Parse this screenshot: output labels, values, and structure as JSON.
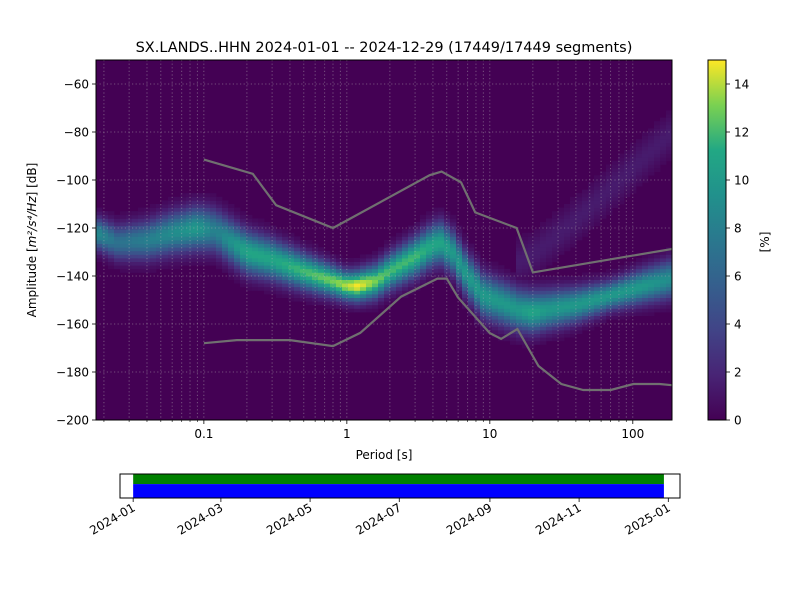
{
  "chart_data": [
    {
      "type": "heatmap",
      "title": "SX.LANDS..HHN   2024-01-01 -- 2024-12-29  (17449/17449 segments)",
      "xlabel": "Period [s]",
      "ylabel_main": "Amplitude [",
      "ylabel_units": "m²/s⁴/Hz",
      "ylabel_tail": "] [dB]",
      "x_scale": "log",
      "xlim": [
        0.0176,
        188
      ],
      "ylim": [
        -200,
        -50
      ],
      "grid": true,
      "x_ticks": [
        {
          "value": 0.1,
          "label": "0.1"
        },
        {
          "value": 1,
          "label": "1"
        },
        {
          "value": 10,
          "label": "10"
        },
        {
          "value": 100,
          "label": "100"
        }
      ],
      "y_ticks": [
        {
          "value": -60,
          "label": "−60"
        },
        {
          "value": -80,
          "label": "−80"
        },
        {
          "value": -100,
          "label": "−100"
        },
        {
          "value": -120,
          "label": "−120"
        },
        {
          "value": -140,
          "label": "−140"
        },
        {
          "value": -160,
          "label": "−160"
        },
        {
          "value": -180,
          "label": "−180"
        },
        {
          "value": -200,
          "label": "−200"
        }
      ],
      "colorbar": {
        "label": "[%]",
        "colormap": "viridis",
        "range": [
          0,
          15
        ],
        "ticks": [
          {
            "value": 0,
            "label": "0"
          },
          {
            "value": 2,
            "label": "2"
          },
          {
            "value": 4,
            "label": "4"
          },
          {
            "value": 6,
            "label": "6"
          },
          {
            "value": 8,
            "label": "8"
          },
          {
            "value": 10,
            "label": "10"
          },
          {
            "value": 12,
            "label": "12"
          },
          {
            "value": 14,
            "label": "14"
          }
        ]
      },
      "density_ridge": {
        "period": [
          0.0176,
          0.025,
          0.04,
          0.06,
          0.09,
          0.12,
          0.2,
          0.3,
          0.5,
          0.8,
          1.0,
          1.2,
          1.6,
          2.0,
          3.0,
          4.0,
          4.5,
          5.5,
          7.0,
          9.0,
          12,
          16,
          20,
          25,
          40,
          70,
          120,
          188
        ],
        "amplitude_db": [
          -122,
          -126,
          -125,
          -122,
          -120,
          -121,
          -130,
          -133,
          -138,
          -142,
          -144,
          -144,
          -142,
          -138,
          -132,
          -127,
          -126,
          -130,
          -140,
          -148,
          -151,
          -154,
          -155,
          -154,
          -152,
          -148,
          -144,
          -141
        ],
        "peak_percent": [
          9,
          7,
          8,
          9,
          10,
          8,
          11,
          11,
          12,
          13,
          14,
          15,
          13,
          12,
          12,
          11,
          11,
          10,
          10,
          10,
          10,
          10,
          11,
          10,
          10,
          10,
          10,
          9
        ]
      },
      "noise_models": [
        {
          "period": [
            0.1,
            0.17,
            0.4,
            0.8,
            1.24,
            2.4,
            4.3,
            5.0,
            6.0,
            10,
            12,
            15.6,
            21.9,
            31.6,
            45,
            70,
            101,
            154,
            188
          ],
          "amplitude_db": [
            -168,
            -166.7,
            -166.7,
            -169.2,
            -163.7,
            -148.6,
            -141.1,
            -141.1,
            -149,
            -163.8,
            -166.2,
            -162.1,
            -177.5,
            -185,
            -187.5,
            -187.5,
            -185,
            -185,
            -185.5
          ]
        },
        {
          "period": [
            0.1,
            0.22,
            0.32,
            0.8,
            3.8,
            4.6,
            6.3,
            7.9,
            15.4,
            20,
            354
          ],
          "amplitude_db": [
            -91.5,
            -97.4,
            -110.5,
            -120,
            -98,
            -96.5,
            -101,
            -113.5,
            -120,
            -138.5,
            -126
          ]
        }
      ]
    },
    {
      "type": "timeline",
      "x_ticks": [
        "2024-01",
        "2024-03",
        "2024-05",
        "2024-07",
        "2024-09",
        "2024-11",
        "2025-01"
      ],
      "range_start": "2023-12-23",
      "range_end": "2025-01-09",
      "data_start": "2024-01-01",
      "data_end": "2024-12-29",
      "colors": {
        "available": "#008000",
        "used": "#0000ff"
      }
    }
  ]
}
